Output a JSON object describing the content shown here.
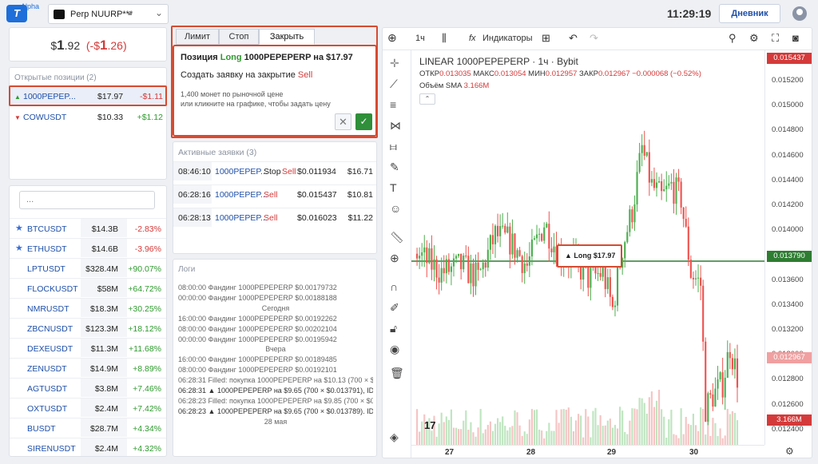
{
  "app": {
    "logo_text": "T",
    "alpha": "Alpha",
    "account": "Perp NUURP***",
    "time": "11:29:19",
    "journal_btn": "Дневник"
  },
  "balance": {
    "sign": "$",
    "main": "1",
    "dec": ".92",
    "pnl_open": "(-$",
    "pnl_main": "1",
    "pnl_dec": ".26",
    "pnl_close": ")"
  },
  "positions": {
    "title": "Открытые позиции (2)",
    "rows": [
      {
        "symbol": "1000PEPEP...",
        "value": "$17.97",
        "pnl": "-$1.11",
        "dir": "up"
      },
      {
        "symbol": "COWUSDT",
        "value": "$10.33",
        "pnl": "+$1.12",
        "dir": "down"
      }
    ]
  },
  "watchlist": {
    "search_placeholder": "...",
    "rows": [
      {
        "symbol": "BTCUSDT",
        "vol": "$14.3B",
        "chg": "-2.83%",
        "star": true,
        "neg": true
      },
      {
        "symbol": "ETHUSDT",
        "vol": "$14.6B",
        "chg": "-3.96%",
        "star": true,
        "neg": true
      },
      {
        "symbol": "LPTUSDT",
        "vol": "$328.4M",
        "chg": "+90.07%",
        "star": false,
        "neg": false
      },
      {
        "symbol": "FLOCKUSDT",
        "vol": "$58M",
        "chg": "+64.72%",
        "star": false,
        "neg": false
      },
      {
        "symbol": "NMRUSDT",
        "vol": "$18.3M",
        "chg": "+30.25%",
        "star": false,
        "neg": false
      },
      {
        "symbol": "ZBCNUSDT",
        "vol": "$123.3M",
        "chg": "+18.12%",
        "star": false,
        "neg": false
      },
      {
        "symbol": "DEXEUSDT",
        "vol": "$11.3M",
        "chg": "+11.68%",
        "star": false,
        "neg": false
      },
      {
        "symbol": "ZENUSDT",
        "vol": "$14.9M",
        "chg": "+8.89%",
        "star": false,
        "neg": false
      },
      {
        "symbol": "AGTUSDT",
        "vol": "$3.8M",
        "chg": "+7.46%",
        "star": false,
        "neg": false
      },
      {
        "symbol": "OXTUSDT",
        "vol": "$2.4M",
        "chg": "+7.42%",
        "star": false,
        "neg": false
      },
      {
        "symbol": "BUSDT",
        "vol": "$28.7M",
        "chg": "+4.34%",
        "star": false,
        "neg": false
      },
      {
        "symbol": "SIRENUSDT",
        "vol": "$2.4M",
        "chg": "+4.32%",
        "star": false,
        "neg": false
      }
    ]
  },
  "order_panel": {
    "tabs": [
      "Лимит",
      "Стоп",
      "Закрыть"
    ],
    "title_prefix": "Позиция",
    "title_side": "Long",
    "title_rest": "1000PEPEPERP на $17.97",
    "sub_prefix": "Создать заявку на закрытие",
    "sub_side": "Sell",
    "note1": "1,400 монет по рыночной цене",
    "note2": "или кликните на графике, чтобы задать цену",
    "cancel_glyph": "✕",
    "confirm_glyph": "✓"
  },
  "orders": {
    "title": "Активные заявки (3)",
    "rows": [
      {
        "time": "08:46:10",
        "symbol": "1000PEPEP...",
        "type": "Stop",
        "side": "Sell",
        "price": "$0.011934",
        "amount": "$16.71"
      },
      {
        "time": "06:28:16",
        "symbol": "1000PEPEP...",
        "type": "",
        "side": "Sell",
        "price": "$0.015437",
        "amount": "$10.81"
      },
      {
        "time": "06:28:13",
        "symbol": "1000PEPEP...",
        "type": "",
        "side": "Sell",
        "price": "$0.016023",
        "amount": "$11.22"
      }
    ]
  },
  "logs": {
    "title": "Логи",
    "rows": [
      {
        "text": "08:00:00 Фандинг 1000PEPEPERP $0.00179732",
        "center": false,
        "dark": false
      },
      {
        "text": "00:00:00 Фандинг 1000PEPEPERP $0.00188188",
        "center": false,
        "dark": false
      },
      {
        "text": "Сегодня",
        "center": true,
        "dark": false
      },
      {
        "text": "16:00:00 Фандинг 1000PEPEPERP $0.00192262",
        "center": false,
        "dark": false
      },
      {
        "text": "08:00:00 Фандинг 1000PEPEPERP $0.00202104",
        "center": false,
        "dark": false
      },
      {
        "text": "00:00:00 Фандинг 1000PEPEPERP $0.00195942",
        "center": false,
        "dark": false
      },
      {
        "text": "Вчера",
        "center": true,
        "dark": false
      },
      {
        "text": "16:00:00 Фандинг 1000PEPEPERP $0.00189485",
        "center": false,
        "dark": false
      },
      {
        "text": "08:00:00 Фандинг 1000PEPEPERP $0.00192101",
        "center": false,
        "dark": false
      },
      {
        "text": "06:28:31 Filled: покупка 1000PEPEPERP на $10.13 (700 × $0.01...",
        "center": false,
        "dark": false
      },
      {
        "text": "06:28:31 ▲ 1000PEPEPERP на $9.65 (700 × $0.013791), ID: 5...",
        "center": false,
        "dark": true
      },
      {
        "text": "06:28:23 Filled: покупка 1000PEPEPERP на $9.85 (700 × $0.01...",
        "center": false,
        "dark": false
      },
      {
        "text": "06:28:23 ▲ 1000PEPEPERP на $9.65 (700 × $0.013789). ID: b...",
        "center": false,
        "dark": true
      },
      {
        "text": "28 мая",
        "center": true,
        "dark": false
      }
    ]
  },
  "chart_toolbar": {
    "interval": "1ч",
    "indicators": "Индикаторы",
    "fx": "fx"
  },
  "chart": {
    "symbol_line": "LINEAR 1000PEPEPERP · 1ч · Bybit",
    "ohlc": {
      "o_label": "ОТКР",
      "o": "0.013035",
      "h_label": "МАКС",
      "h": "0.013054",
      "l_label": "МИН",
      "l": "0.012957",
      "c_label": "ЗАКР",
      "c": "0.012967",
      "chg": "−0.000068 (−0.52%)"
    },
    "sma_label": "Объём SMA",
    "sma_value": "3.166M",
    "long_label": "▲ Long $17.97",
    "price_ticks": [
      "0.015200",
      "0.015000",
      "0.014800",
      "0.014600",
      "0.014400",
      "0.014200",
      "0.014000",
      "0.013800",
      "0.013600",
      "0.013400",
      "0.013200",
      "0.013000",
      "0.012800",
      "0.012600",
      "0.012400"
    ],
    "top_label": "0.015437",
    "line_label": "0.013790",
    "last_label": "0.012967",
    "vol_label": "3.166M",
    "x_ticks": [
      "27",
      "28",
      "29",
      "30"
    ]
  },
  "chart_data": {
    "type": "candlestick",
    "position_price": 0.01379,
    "last_price": 0.012967,
    "y_range": [
      0.0123,
      0.0155
    ],
    "candles": []
  },
  "colors": {
    "up": "#4caf50",
    "down": "#ef5350",
    "accent": "#1e4fa8",
    "position_line": "#2e7d32"
  }
}
